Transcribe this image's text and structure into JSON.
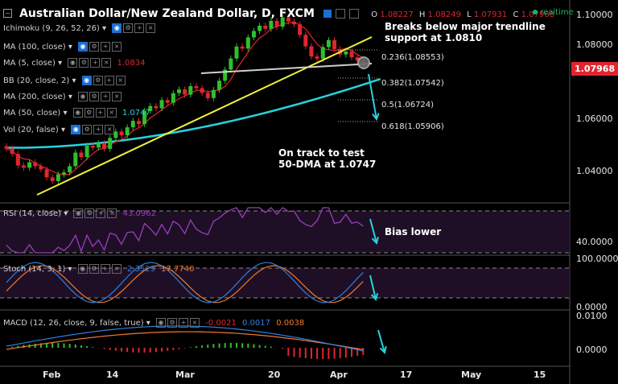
{
  "header": {
    "title": "Australian Dollar/New Zealand Dollar, D, FXCM",
    "ohlc": [
      {
        "k": "O",
        "v": "1.08227"
      },
      {
        "k": "H",
        "v": "1.08249"
      },
      {
        "k": "L",
        "v": "1.07931"
      },
      {
        "k": "C",
        "v": "1.07968"
      }
    ],
    "realtime": "realtime"
  },
  "indicators": [
    {
      "label": "Ichimoku (9, 26, 52, 26)",
      "value": "",
      "color": "#cfcfcf"
    },
    {
      "label": "MA (100, close)",
      "value": "",
      "color": "#cfcfcf"
    },
    {
      "label": "MA (5, close)",
      "value": "1.0834",
      "color": "#e0262d"
    },
    {
      "label": "BB (20, close, 2)",
      "value": "",
      "color": "#cfcfcf"
    },
    {
      "label": "MA (200, close)",
      "value": "",
      "color": "#cfcfcf"
    },
    {
      "label": "MA (50, close)",
      "value": "1.0747",
      "color": "#27d3e0"
    },
    {
      "label": "Vol (20, false)",
      "value": "",
      "color": "#cfcfcf"
    }
  ],
  "annotations": {
    "breaks": [
      "Breaks below major trendline",
      "support at 1.0810"
    ],
    "ontrack": [
      "On track to test",
      "50-DMA at 1.0747"
    ],
    "bias": "Bias lower"
  },
  "fib_levels": [
    "0.236(1.08553)",
    "0.382(1.07542)",
    "0.5(1.06724)",
    "0.618(1.05906)"
  ],
  "price_axis": {
    "ticks": [
      "1.10000",
      "1.08000",
      "1.06000",
      "1.04000"
    ],
    "last": "1.07968"
  },
  "rsi": {
    "label": "RSI (14, close)",
    "value": "43.0962",
    "ticks": [
      "40.0000"
    ]
  },
  "stoch": {
    "label": "Stoch (14, 3, 1)",
    "k": "2.3529",
    "d": "17.7740",
    "ticks": [
      "100.0000",
      "0.0000"
    ]
  },
  "macd": {
    "label": "MACD (12, 26, close, 9, false, true)",
    "hist": "-0.0021",
    "macd": "0.0017",
    "signal": "0.0038",
    "ticks": [
      "0.0100",
      "0.0000"
    ]
  },
  "x_axis": [
    "Feb",
    "14",
    "Mar",
    "20",
    "Apr",
    "17",
    "May",
    "15"
  ],
  "colors": {
    "up": "#2fbf2f",
    "down": "#e0262d",
    "ma50": "#27d3e0",
    "ma5": "#e0262d",
    "trendline": "#f2f23a",
    "support": "#d0d0d0",
    "arrow": "#27d3e0",
    "rsi": "#9b3fb8",
    "stoch_k": "#2f7fe0",
    "stoch_d": "#f07a2a"
  },
  "chart_data": {
    "type": "candlestick",
    "title": "Australian Dollar/New Zealand Dollar, D, FXCM",
    "ylim": [
      1.026,
      1.104
    ],
    "close": [
      1.0466,
      1.0445,
      1.0398,
      1.0389,
      1.0411,
      1.0395,
      1.0382,
      1.035,
      1.0335,
      1.0362,
      1.037,
      1.0395,
      1.045,
      1.0432,
      1.0478,
      1.047,
      1.0488,
      1.0465,
      1.0509,
      1.0535,
      1.052,
      1.0552,
      1.0578,
      1.0565,
      1.0618,
      1.0638,
      1.0629,
      1.0662,
      1.0651,
      1.069,
      1.0705,
      1.0684,
      1.0718,
      1.071,
      1.0691,
      1.067,
      1.0703,
      1.074,
      1.0785,
      1.083,
      1.0878,
      1.087,
      1.0915,
      1.0941,
      1.0962,
      1.095,
      1.0982,
      1.0958,
      1.0996,
      1.0979,
      1.0968,
      1.0925,
      1.0879,
      1.0838,
      1.0829,
      1.0876,
      1.0904,
      1.0868,
      1.0846,
      1.0858,
      1.0835,
      1.0822,
      1.0797
    ],
    "rsi_value": 43.0962,
    "ma50": 1.0747,
    "ma5": 1.0834
  }
}
